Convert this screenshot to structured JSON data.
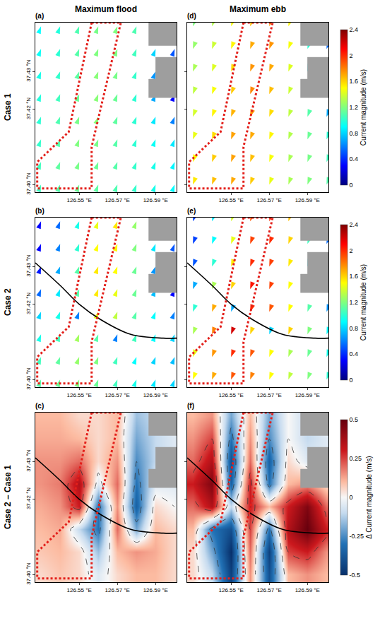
{
  "chart_data": {
    "type": "vector_map",
    "column_titles": [
      "Maximum flood",
      "Maximum ebb"
    ],
    "row_titles": [
      "Case 1",
      "Case 2",
      "Case 2 – Case 1"
    ],
    "xlim": [
      126.527,
      126.601
    ],
    "ylim": [
      37.398,
      37.443
    ],
    "xticks": [
      {
        "value": 126.55,
        "label": "126.55 °E"
      },
      {
        "value": 126.57,
        "label": "126.57 °E"
      },
      {
        "value": 126.59,
        "label": "126.59 °E"
      }
    ],
    "yticks": [
      {
        "value": 37.4,
        "label": "37.40 °N"
      },
      {
        "value": 37.42,
        "label": "37.42 °N"
      },
      {
        "value": 37.43,
        "label": "37.43 °N"
      }
    ],
    "lon": [
      126.53,
      126.54,
      126.55,
      126.56,
      126.57,
      126.58,
      126.59,
      126.6
    ],
    "lat": [
      37.4,
      37.406,
      37.412,
      37.418,
      37.424,
      37.43,
      37.436,
      37.442
    ],
    "channel": {
      "color": "#e3201b",
      "lon": [
        126.5565,
        126.5718,
        126.5565,
        126.5565,
        126.528,
        126.528,
        126.5445,
        126.5565
      ],
      "lat": [
        37.443,
        37.443,
        37.41,
        37.399,
        37.399,
        37.406,
        37.414,
        37.443
      ]
    },
    "land": [
      {
        "lon": [
          126.5864,
          126.601,
          126.601,
          126.5864,
          126.5864
        ],
        "lat": [
          37.4369,
          37.4369,
          37.443,
          37.443,
          37.4369
        ]
      },
      {
        "lon": [
          126.601,
          126.59,
          126.59,
          126.5864,
          126.5864,
          126.601
        ],
        "lat": [
          37.4338,
          37.4338,
          37.428,
          37.428,
          37.4231,
          37.4231
        ]
      }
    ],
    "panels": [
      {
        "label": "(a)",
        "type": "vector",
        "direction": 20,
        "values": [
          [
            1.05,
            1.1,
            1.15,
            1.12,
            1.08,
            1.02,
            0.95,
            0.9
          ],
          [
            1.05,
            1.12,
            1.18,
            1.15,
            1.1,
            1.02,
            0.95,
            0.88
          ],
          [
            1.02,
            1.1,
            1.2,
            1.18,
            1.1,
            1.0,
            0.92,
            0.85
          ],
          [
            1.0,
            1.08,
            1.18,
            1.22,
            1.12,
            1.0,
            0.85,
            0.6
          ],
          [
            0.98,
            1.05,
            1.15,
            1.22,
            1.15,
            1.0,
            0.7,
            0.3
          ],
          [
            0.95,
            1.02,
            1.12,
            1.22,
            1.18,
            1.02,
            0.65,
            0.25
          ],
          [
            0.92,
            1.0,
            1.1,
            1.2,
            1.2,
            1.05,
            0.8,
            0.5
          ],
          [
            0.9,
            0.98,
            1.08,
            1.18,
            1.2,
            1.08,
            0.75,
            0.2
          ]
        ]
      },
      {
        "label": "(b)",
        "type": "vector",
        "direction": 20,
        "bridge": {
          "lon": [
            126.527,
            126.54,
            126.55,
            126.561,
            126.577,
            126.594,
            126.601
          ],
          "lat": [
            37.431,
            37.425,
            37.42,
            37.416,
            37.412,
            37.411,
            37.411
          ]
        },
        "values": [
          [
            1.1,
            1.15,
            1.2,
            1.15,
            1.05,
            0.95,
            0.85,
            0.8
          ],
          [
            1.05,
            1.12,
            1.25,
            1.2,
            1.05,
            0.9,
            0.8,
            0.75
          ],
          [
            0.95,
            1.05,
            1.28,
            1.1,
            0.6,
            1.05,
            0.9,
            0.8
          ],
          [
            0.8,
            0.95,
            0.6,
            1.45,
            1.35,
            1.1,
            0.9,
            0.6
          ],
          [
            0.55,
            0.85,
            1.1,
            1.55,
            1.45,
            1.15,
            0.75,
            0.3
          ],
          [
            0.35,
            0.7,
            1.1,
            1.55,
            1.5,
            1.15,
            0.65,
            0.25
          ],
          [
            0.3,
            0.6,
            1.0,
            1.5,
            1.52,
            1.2,
            0.85,
            0.5
          ],
          [
            0.3,
            0.55,
            0.95,
            1.45,
            1.55,
            1.25,
            0.8,
            0.2
          ]
        ]
      },
      {
        "label": "(c)",
        "type": "contour",
        "bridge": {
          "lon": [
            126.527,
            126.54,
            126.55,
            126.561,
            126.577,
            126.594,
            126.601
          ],
          "lat": [
            37.431,
            37.425,
            37.42,
            37.416,
            37.412,
            37.411,
            37.411
          ]
        },
        "values": [
          [
            0.05,
            0.08,
            0.05,
            -0.05,
            0.05,
            0.1,
            0.1,
            0.05
          ],
          [
            0.08,
            0.1,
            0.05,
            -0.15,
            0.1,
            0.15,
            0.12,
            0.05
          ],
          [
            0.1,
            0.12,
            -0.1,
            -0.3,
            0.2,
            -0.2,
            0.1,
            0.05
          ],
          [
            0.12,
            0.15,
            0.3,
            -0.3,
            0.15,
            -0.35,
            0.05,
            0.0
          ],
          [
            0.15,
            0.18,
            0.35,
            -0.05,
            0.2,
            -0.3,
            -0.05,
            -0.05
          ],
          [
            0.15,
            0.15,
            0.2,
            0.05,
            0.15,
            -0.25,
            -0.1,
            -0.05
          ],
          [
            0.12,
            0.12,
            0.1,
            0.05,
            0.1,
            -0.2,
            -0.1,
            -0.05
          ],
          [
            0.1,
            0.1,
            0.05,
            0.05,
            0.1,
            -0.15,
            -0.1,
            0.0
          ]
        ]
      },
      {
        "label": "(d)",
        "type": "vector",
        "direction": 200,
        "colorbar": {
          "title": "Current magnitude (m/s)",
          "range": [
            0,
            2.4
          ],
          "ticks": [
            0,
            0.4,
            0.8,
            1.2,
            1.6,
            2,
            2.4
          ]
        },
        "values": [
          [
            1.55,
            1.65,
            1.7,
            1.62,
            1.45,
            1.3,
            1.2,
            1.1
          ],
          [
            1.5,
            1.62,
            1.72,
            1.65,
            1.48,
            1.3,
            1.18,
            1.05
          ],
          [
            1.45,
            1.58,
            1.72,
            1.7,
            1.52,
            1.32,
            1.15,
            1.0
          ],
          [
            1.4,
            1.52,
            1.68,
            1.75,
            1.58,
            1.35,
            1.1,
            0.7
          ],
          [
            1.35,
            1.48,
            1.62,
            1.78,
            1.65,
            1.38,
            0.9,
            0.3
          ],
          [
            1.3,
            1.42,
            1.58,
            1.75,
            1.7,
            1.42,
            0.85,
            0.25
          ],
          [
            1.25,
            1.38,
            1.52,
            1.7,
            1.75,
            1.48,
            1.0,
            0.55
          ],
          [
            1.2,
            1.32,
            1.48,
            1.65,
            1.75,
            1.52,
            0.95,
            0.2
          ]
        ]
      },
      {
        "label": "(e)",
        "type": "vector",
        "direction": 200,
        "colorbar": {
          "title": "Current magnitude (m/s)",
          "range": [
            0,
            2.4
          ],
          "ticks": [
            0,
            0.4,
            0.8,
            1.2,
            1.6,
            2,
            2.4
          ]
        },
        "bridge": {
          "lon": [
            126.527,
            126.54,
            126.55,
            126.561,
            126.577,
            126.594,
            126.601
          ],
          "lat": [
            37.431,
            37.425,
            37.42,
            37.416,
            37.412,
            37.411,
            37.411
          ]
        },
        "values": [
          [
            1.5,
            1.7,
            1.9,
            1.8,
            1.5,
            1.35,
            1.2,
            1.0
          ],
          [
            1.45,
            1.75,
            2.0,
            1.9,
            1.5,
            1.3,
            1.15,
            0.95
          ],
          [
            1.3,
            1.8,
            2.2,
            1.6,
            0.8,
            1.6,
            1.2,
            0.9
          ],
          [
            1.0,
            1.7,
            0.7,
            2.0,
            1.9,
            1.5,
            1.1,
            0.65
          ],
          [
            0.7,
            1.3,
            1.6,
            2.05,
            1.95,
            1.5,
            0.95,
            0.3
          ],
          [
            0.5,
            1.0,
            1.55,
            2.0,
            1.95,
            1.55,
            0.85,
            0.25
          ],
          [
            0.45,
            0.9,
            1.45,
            1.95,
            2.0,
            1.6,
            1.05,
            0.55
          ],
          [
            0.45,
            0.85,
            1.4,
            1.9,
            2.0,
            1.65,
            1.0,
            0.2
          ]
        ]
      },
      {
        "label": "(f)",
        "type": "contour",
        "colorbar": {
          "title": "Δ Current magnitude (m/s)",
          "range": [
            -0.5,
            0.5
          ],
          "ticks": [
            -0.5,
            -0.25,
            0,
            0.25,
            0.5
          ]
        },
        "bridge": {
          "lon": [
            126.527,
            126.54,
            126.55,
            126.561,
            126.577,
            126.594,
            126.601
          ],
          "lat": [
            37.431,
            37.425,
            37.42,
            37.416,
            37.412,
            37.411,
            37.411
          ]
        },
        "values": [
          [
            0.05,
            -0.1,
            -0.45,
            0.15,
            -0.4,
            0.1,
            0.15,
            0.1
          ],
          [
            0.05,
            -0.2,
            -0.5,
            0.2,
            -0.45,
            0.25,
            0.3,
            0.15
          ],
          [
            0.1,
            -0.3,
            -0.4,
            0.25,
            -0.3,
            0.35,
            0.5,
            0.3
          ],
          [
            0.2,
            0.35,
            -0.1,
            0.3,
            0.1,
            0.3,
            0.45,
            0.2
          ],
          [
            0.3,
            0.45,
            -0.35,
            0.3,
            -0.3,
            0.1,
            0.15,
            0.05
          ],
          [
            0.2,
            0.35,
            -0.4,
            0.2,
            -0.35,
            0.05,
            -0.05,
            -0.05
          ],
          [
            0.15,
            0.25,
            -0.3,
            0.15,
            -0.25,
            0.0,
            -0.1,
            -0.05
          ],
          [
            0.1,
            0.15,
            -0.2,
            0.1,
            -0.2,
            0.0,
            -0.1,
            0.0
          ]
        ]
      }
    ]
  }
}
